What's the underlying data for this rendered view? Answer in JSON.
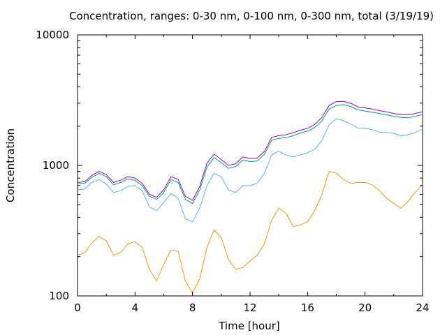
{
  "chart_data": {
    "type": "line",
    "title": "Concentration, ranges: 0-30 nm, 0-100 nm, 0-300 nm, total (3/19/19)",
    "xlabel": "Time [hour]",
    "ylabel": "Concentration",
    "xlim": [
      0,
      24
    ],
    "ylim": [
      100,
      10000
    ],
    "y_scale": "log",
    "grid": false,
    "x_ticks": [
      "0",
      "4",
      "8",
      "12",
      "16",
      "20",
      "24"
    ],
    "y_ticks": [
      "100",
      "1000",
      "10000"
    ],
    "series": [
      {
        "color": "#e69f00",
        "x": [
          0,
          0.5,
          1,
          1.5,
          2,
          2.5,
          3,
          3.5,
          4,
          4.5,
          5,
          5.5,
          6,
          6.5,
          7,
          7.5,
          8,
          8.5,
          9,
          9.5,
          10,
          10.5,
          11,
          11.5,
          12,
          12.5,
          13,
          13.5,
          14,
          14.5,
          15,
          15.5,
          16,
          16.5,
          17,
          17.5,
          18,
          18.5,
          19,
          19.5,
          20,
          20.5,
          21,
          21.5,
          22,
          22.5,
          23,
          23.5,
          24
        ],
        "y": [
          205,
          215,
          255,
          285,
          265,
          205,
          215,
          250,
          260,
          235,
          160,
          130,
          175,
          225,
          220,
          130,
          105,
          135,
          235,
          320,
          280,
          190,
          160,
          165,
          185,
          205,
          250,
          380,
          470,
          430,
          340,
          350,
          370,
          450,
          600,
          900,
          870,
          780,
          730,
          740,
          740,
          710,
          640,
          560,
          510,
          470,
          530,
          620,
          720
        ]
      },
      {
        "color": "#56b4e9",
        "x": [
          0,
          0.5,
          1,
          1.5,
          2,
          2.5,
          3,
          3.5,
          4,
          4.5,
          5,
          5.5,
          6,
          6.5,
          7,
          7.5,
          8,
          8.5,
          9,
          9.5,
          10,
          10.5,
          11,
          11.5,
          12,
          12.5,
          13,
          13.5,
          14,
          14.5,
          15,
          15.5,
          16,
          16.5,
          17,
          17.5,
          18,
          18.5,
          19,
          19.5,
          20,
          20.5,
          21,
          21.5,
          22,
          22.5,
          23,
          23.5,
          24
        ],
        "y": [
          650,
          660,
          740,
          780,
          720,
          620,
          640,
          690,
          700,
          640,
          480,
          450,
          520,
          610,
          560,
          390,
          370,
          470,
          700,
          870,
          820,
          650,
          620,
          700,
          700,
          730,
          870,
          1200,
          1290,
          1200,
          1160,
          1200,
          1250,
          1330,
          1550,
          2050,
          2280,
          2200,
          2080,
          1930,
          1920,
          1880,
          1800,
          1790,
          1760,
          1680,
          1720,
          1790,
          1900
        ]
      },
      {
        "color": "#009e73",
        "x": [
          0,
          0.5,
          1,
          1.5,
          2,
          2.5,
          3,
          3.5,
          4,
          4.5,
          5,
          5.5,
          6,
          6.5,
          7,
          7.5,
          8,
          8.5,
          9,
          9.5,
          10,
          10.5,
          11,
          11.5,
          12,
          12.5,
          13,
          13.5,
          14,
          14.5,
          15,
          15.5,
          16,
          16.5,
          17,
          17.5,
          18,
          18.5,
          19,
          19.5,
          20,
          20.5,
          21,
          21.5,
          22,
          22.5,
          23,
          23.5,
          24
        ],
        "y": [
          720,
          730,
          810,
          870,
          820,
          710,
          740,
          790,
          770,
          700,
          580,
          550,
          620,
          780,
          740,
          550,
          510,
          650,
          970,
          1150,
          1050,
          950,
          980,
          1100,
          1070,
          1080,
          1220,
          1560,
          1610,
          1630,
          1690,
          1770,
          1830,
          1950,
          2200,
          2700,
          2880,
          2920,
          2830,
          2660,
          2610,
          2560,
          2500,
          2440,
          2380,
          2330,
          2320,
          2380,
          2450
        ]
      },
      {
        "color": "#9400d3",
        "x": [
          0,
          0.5,
          1,
          1.5,
          2,
          2.5,
          3,
          3.5,
          4,
          4.5,
          5,
          5.5,
          6,
          6.5,
          7,
          7.5,
          8,
          8.5,
          9,
          9.5,
          10,
          10.5,
          11,
          11.5,
          12,
          12.5,
          13,
          13.5,
          14,
          14.5,
          15,
          15.5,
          16,
          16.5,
          17,
          17.5,
          18,
          18.5,
          19,
          19.5,
          20,
          20.5,
          21,
          21.5,
          22,
          22.5,
          23,
          23.5,
          24
        ],
        "y": [
          740,
          750,
          840,
          900,
          850,
          740,
          770,
          820,
          800,
          730,
          600,
          570,
          650,
          820,
          780,
          580,
          540,
          690,
          1040,
          1220,
          1110,
          1000,
          1030,
          1160,
          1130,
          1140,
          1280,
          1640,
          1690,
          1720,
          1780,
          1860,
          1920,
          2060,
          2330,
          2880,
          3080,
          3100,
          2990,
          2810,
          2750,
          2700,
          2630,
          2570,
          2500,
          2450,
          2440,
          2500,
          2580
        ]
      }
    ]
  }
}
